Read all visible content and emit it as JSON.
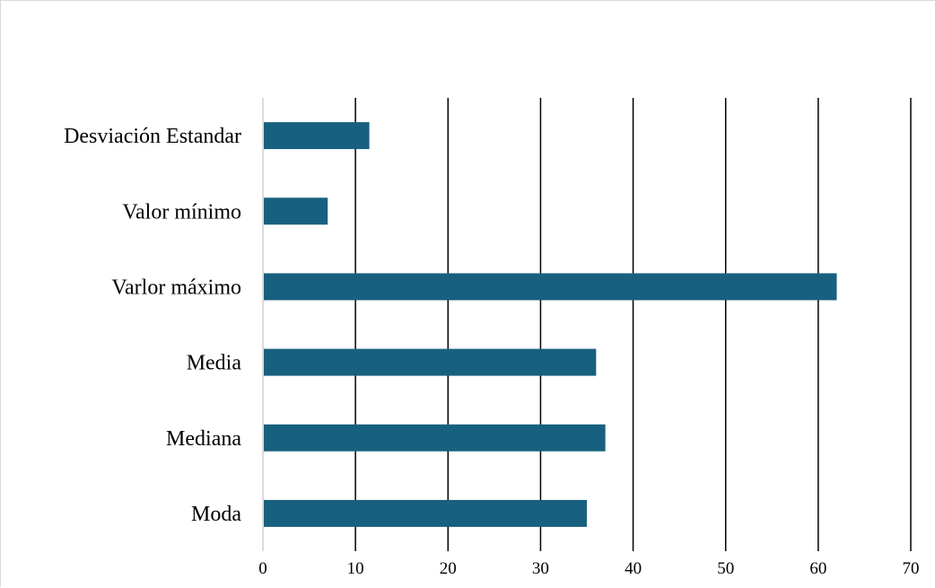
{
  "chart_data": {
    "type": "bar",
    "orientation": "horizontal",
    "title": "",
    "xlabel": "",
    "ylabel": "",
    "categories": [
      "Desviación Estandar",
      "Valor mínimo",
      "Varlor máximo",
      "Media",
      "Mediana",
      "Moda"
    ],
    "values": [
      11.5,
      7,
      62,
      36,
      37,
      35
    ],
    "xlim": [
      0,
      70
    ],
    "x_ticks": [
      0,
      10,
      20,
      30,
      40,
      50,
      60,
      70
    ],
    "grid": "vertical",
    "legend": "none",
    "bar_color": "#18607f"
  }
}
